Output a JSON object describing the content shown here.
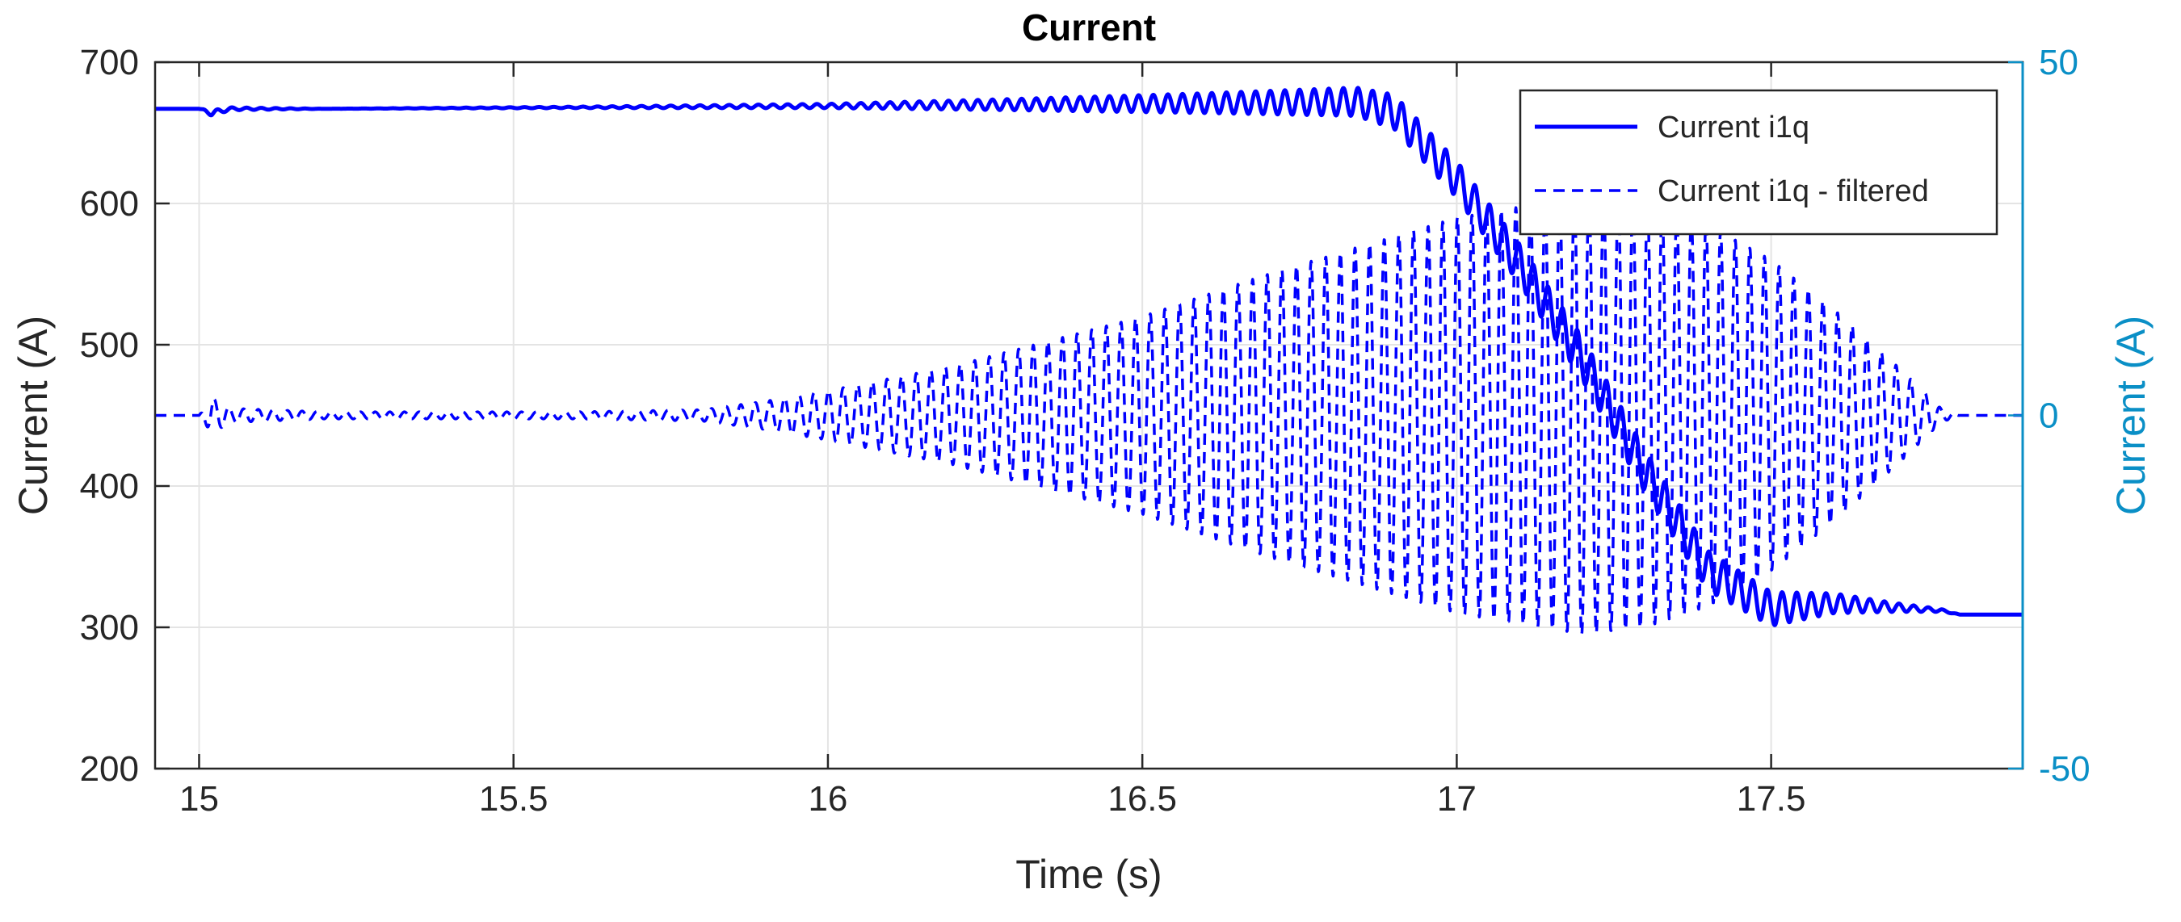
{
  "chart_data": {
    "type": "line",
    "title": "Current",
    "xlabel": "Time (s)",
    "ylabel_left": "Current (A)",
    "ylabel_right": "Current (A)",
    "xlim": [
      14.93,
      17.9
    ],
    "ylim_left": [
      200,
      700
    ],
    "ylim_right": [
      -50,
      50
    ],
    "x_ticks": [
      15,
      15.5,
      16,
      16.5,
      17,
      17.5
    ],
    "x_tick_labels": [
      "15",
      "15.5",
      "16",
      "16.5",
      "17",
      "17.5"
    ],
    "y_left_ticks": [
      200,
      300,
      400,
      500,
      600,
      700
    ],
    "y_left_tick_labels": [
      "200",
      "300",
      "400",
      "500",
      "600",
      "700"
    ],
    "y_right_ticks": [
      -50,
      0,
      50
    ],
    "y_right_tick_labels": [
      "-50",
      "0",
      "50"
    ],
    "grid": true,
    "legend_position": "top-right",
    "colors": {
      "series": "#0000ff",
      "right_axis": "#0a8fc6",
      "left_axis": "#262626",
      "grid": "#e4e4e4"
    },
    "series": [
      {
        "name": "Current i1q",
        "axis": "left",
        "style": "solid",
        "envelope": {
          "x": [
            14.93,
            15.0,
            15.02,
            15.05,
            15.2,
            15.6,
            16.0,
            16.3,
            16.6,
            16.84,
            16.9,
            17.0,
            17.1,
            17.2,
            17.3,
            17.4,
            17.5,
            17.6,
            17.7,
            17.77,
            17.8,
            17.9
          ],
          "center": [
            667,
            667,
            664,
            667,
            667,
            668,
            669,
            670,
            671,
            672,
            665,
            617,
            557,
            490,
            410,
            340,
            313,
            317,
            314,
            312,
            309,
            309
          ],
          "amplitude": [
            0,
            0,
            2,
            1,
            0,
            0.5,
            1.5,
            4,
            7,
            10,
            12,
            13,
            14,
            15,
            15,
            14,
            12,
            7,
            3,
            1,
            0,
            0
          ]
        }
      },
      {
        "name": "Current i1q - filtered",
        "axis": "right",
        "style": "dashed",
        "envelope": {
          "x": [
            14.93,
            15.0,
            15.02,
            15.05,
            15.2,
            15.6,
            15.8,
            15.9,
            16.0,
            16.2,
            16.5,
            16.7,
            17.0,
            17.2,
            17.3,
            17.4,
            17.5,
            17.6,
            17.7,
            17.77,
            17.8,
            17.9
          ],
          "center": [
            0,
            0,
            0,
            0,
            0,
            0,
            0,
            0,
            0,
            0,
            0,
            0,
            0,
            0,
            0,
            0,
            0,
            0,
            0,
            0,
            0,
            0
          ],
          "amplitude": [
            0,
            0,
            2.5,
            1,
            0.5,
            0.5,
            0.8,
            2,
            3.5,
            7,
            14,
            20,
            28,
            31,
            30,
            27,
            22,
            15,
            7,
            1,
            0,
            0
          ]
        }
      }
    ]
  }
}
